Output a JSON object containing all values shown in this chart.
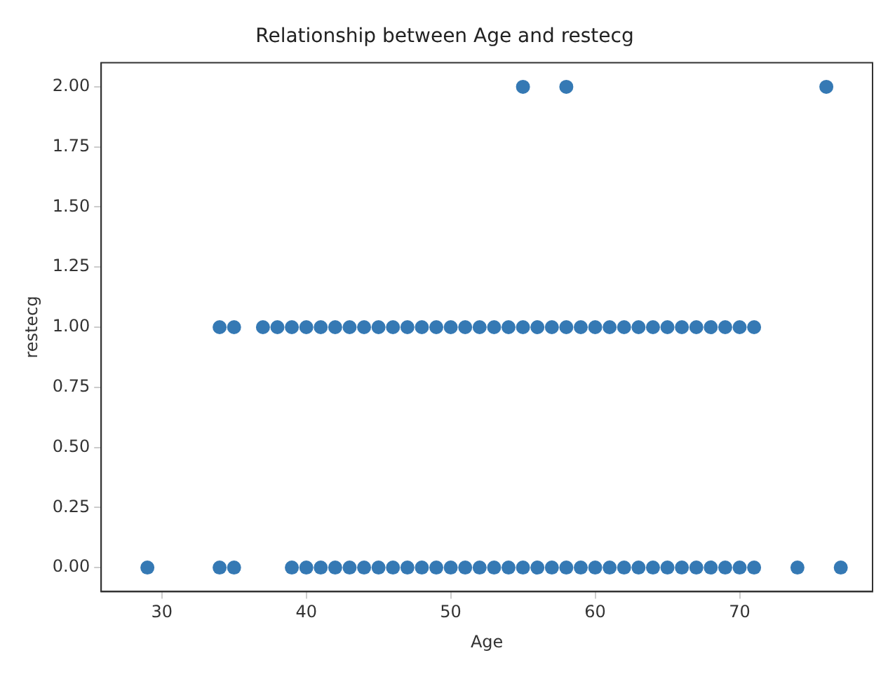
{
  "chart_data": {
    "type": "scatter",
    "title": "Relationship between Age and restecg",
    "xlabel": "Age",
    "ylabel": "restecg",
    "marker": "circle",
    "series": [
      {
        "color": "#3579b4",
        "x": [
          29,
          34,
          35,
          39,
          40,
          41,
          42,
          43,
          44,
          45,
          46,
          47,
          48,
          49,
          50,
          51,
          52,
          53,
          54,
          55,
          56,
          57,
          58,
          59,
          60,
          61,
          62,
          63,
          64,
          65,
          66,
          67,
          68,
          69,
          70,
          71,
          74,
          77,
          34,
          35,
          37,
          38,
          39,
          40,
          41,
          42,
          43,
          44,
          45,
          46,
          47,
          48,
          49,
          50,
          51,
          52,
          53,
          54,
          55,
          56,
          57,
          58,
          59,
          60,
          61,
          62,
          63,
          64,
          65,
          66,
          67,
          68,
          69,
          70,
          71,
          55,
          58,
          76
        ],
        "values": [
          0,
          0,
          0,
          0,
          0,
          0,
          0,
          0,
          0,
          0,
          0,
          0,
          0,
          0,
          0,
          0,
          0,
          0,
          0,
          0,
          0,
          0,
          0,
          0,
          0,
          0,
          0,
          0,
          0,
          0,
          0,
          0,
          0,
          0,
          0,
          0,
          0,
          0,
          1,
          1,
          1,
          1,
          1,
          1,
          1,
          1,
          1,
          1,
          1,
          1,
          1,
          1,
          1,
          1,
          1,
          1,
          1,
          1,
          1,
          1,
          1,
          1,
          1,
          1,
          1,
          1,
          1,
          1,
          1,
          1,
          1,
          1,
          1,
          1,
          1,
          2,
          2,
          2
        ]
      }
    ],
    "xlim": [
      25.8,
      79.2
    ],
    "xticks": [
      30,
      40,
      50,
      60,
      70
    ],
    "ylim": [
      -0.1,
      2.1
    ],
    "yticks": [
      {
        "value": 0,
        "label": "0.00"
      },
      {
        "value": 0.25,
        "label": "0.25"
      },
      {
        "value": 0.5,
        "label": "0.50"
      },
      {
        "value": 0.75,
        "label": "0.75"
      },
      {
        "value": 1,
        "label": "1.00"
      },
      {
        "value": 1.25,
        "label": "1.25"
      },
      {
        "value": 1.5,
        "label": "1.50"
      },
      {
        "value": 1.75,
        "label": "1.75"
      },
      {
        "value": 2,
        "label": "2.00"
      }
    ],
    "grid": false,
    "legend": false
  }
}
